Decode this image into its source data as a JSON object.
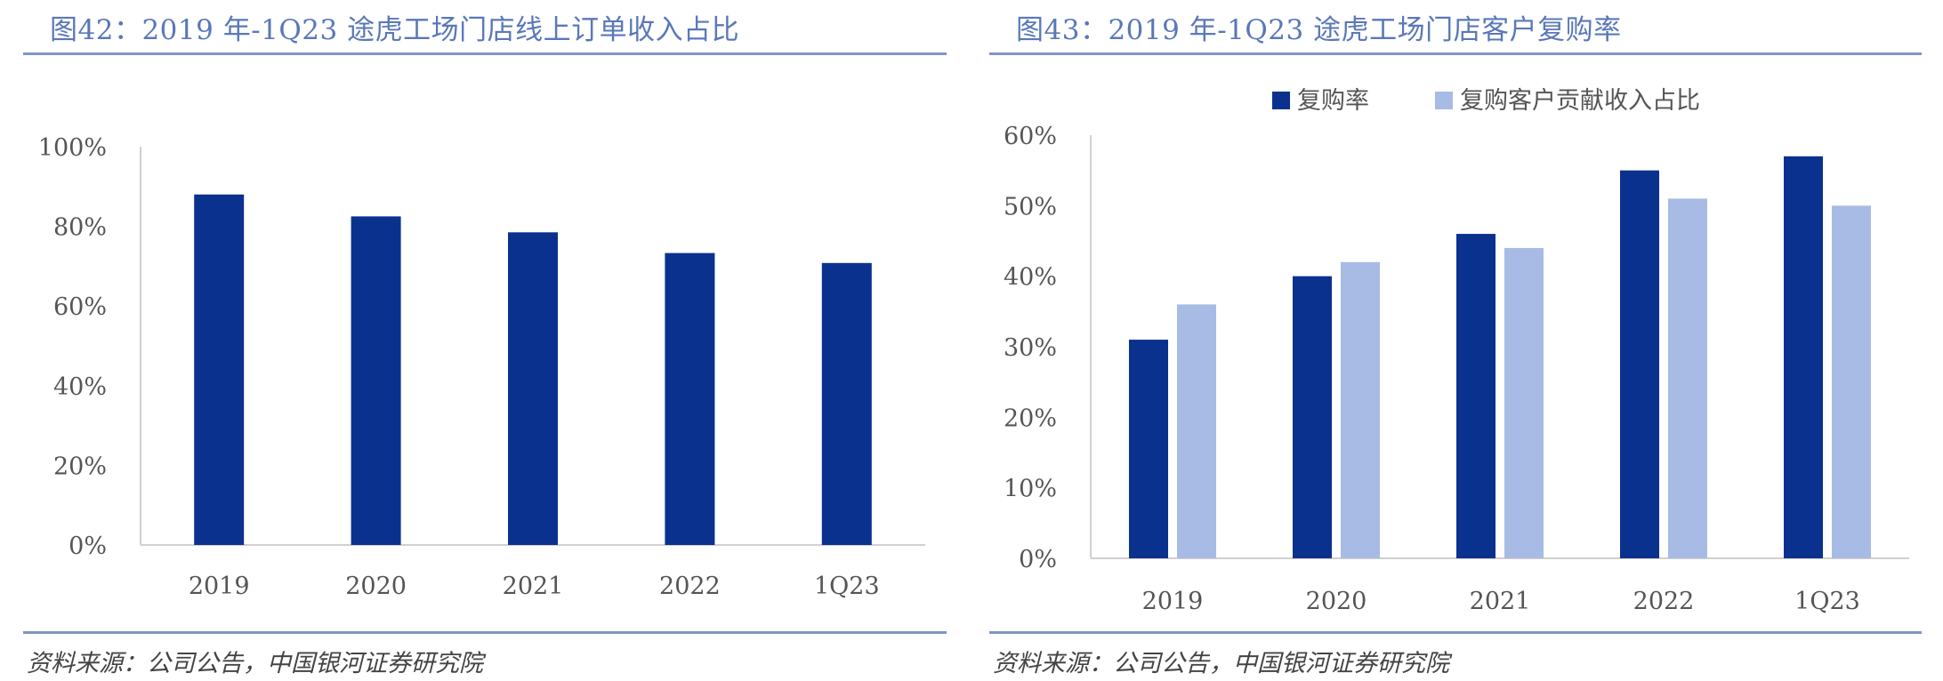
{
  "charts": {
    "left": {
      "title": "图42：2019 年-1Q23 途虎工场门店线上订单收入占比",
      "source": "资料来源：公司公告，中国银河证券研究院"
    },
    "right": {
      "title": "图43：2019 年-1Q23 途虎工场门店客户复购率",
      "source": "资料来源：公司公告，中国银河证券研究院"
    }
  },
  "colors": {
    "dark": "#0b318f",
    "light": "#a8bbe5",
    "axis": "#d0d0d0",
    "accent": "#5a78b8"
  },
  "chart_data": [
    {
      "type": "bar",
      "title": "图42：2019 年-1Q23 途虎工场门店线上订单收入占比",
      "categories": [
        "2019",
        "2020",
        "2021",
        "2022",
        "1Q23"
      ],
      "series": [
        {
          "name": "线上订单收入占比",
          "values": [
            88,
            82.5,
            78.5,
            73.3,
            70.8
          ]
        }
      ],
      "ylim": [
        0,
        100
      ],
      "yticks": [
        "0%",
        "20%",
        "40%",
        "60%",
        "80%",
        "100%"
      ],
      "xlabel": "",
      "ylabel": "",
      "grid": false,
      "legend": "none"
    },
    {
      "type": "bar",
      "title": "图43：2019 年-1Q23 途虎工场门店客户复购率",
      "categories": [
        "2019",
        "2020",
        "2021",
        "2022",
        "1Q23"
      ],
      "series": [
        {
          "name": "复购率",
          "values": [
            31,
            40,
            46,
            55,
            57
          ]
        },
        {
          "name": "复购客户贡献收入占比",
          "values": [
            36,
            42,
            44,
            51,
            50
          ]
        }
      ],
      "ylim": [
        0,
        60
      ],
      "yticks": [
        "0%",
        "10%",
        "20%",
        "30%",
        "40%",
        "50%",
        "60%"
      ],
      "xlabel": "",
      "ylabel": "",
      "grid": false,
      "legend": "top-center"
    }
  ]
}
